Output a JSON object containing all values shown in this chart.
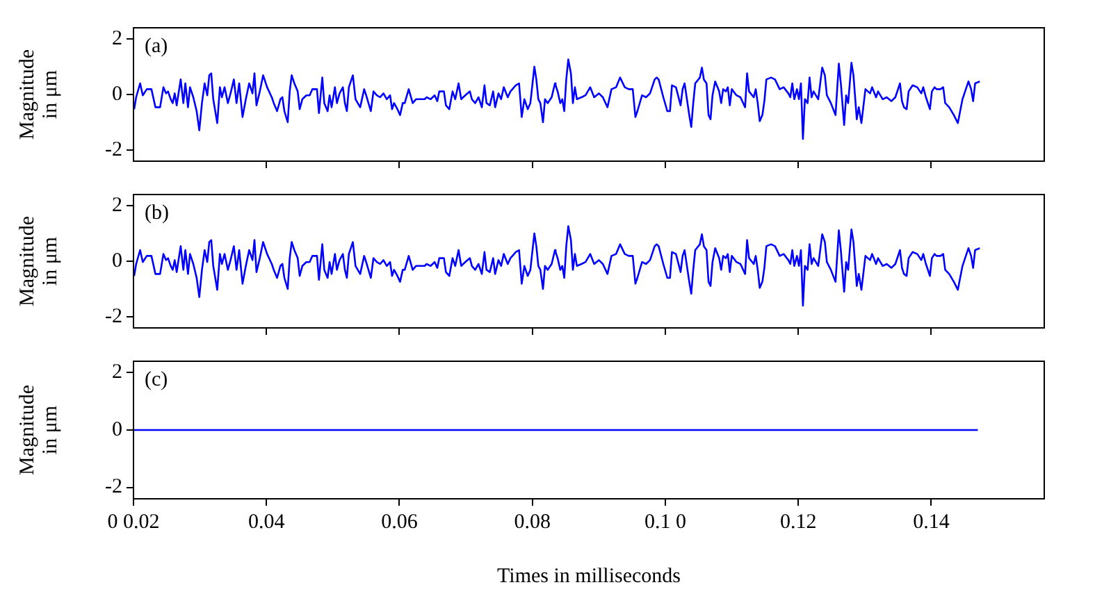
{
  "chart_data": [
    {
      "type": "line",
      "annotations": [
        "(a)"
      ],
      "ylabel": "Magnitude in μm",
      "xlim": [
        0.02,
        0.157
      ],
      "xticks": [
        0.04,
        0.06,
        0.08,
        0.1,
        0.12,
        0.14
      ],
      "ylim": [
        -2.4,
        2.4
      ],
      "yticks": [
        -2,
        0,
        2
      ],
      "tick_labels": "y",
      "series": [
        {
          "color": "#0000ff",
          "x": [
            0.0201,
            0.0204,
            0.021,
            0.0214,
            0.022,
            0.0227,
            0.0233,
            0.024,
            0.0245,
            0.0249,
            0.0252,
            0.0256,
            0.0259,
            0.0262,
            0.0265,
            0.0271,
            0.0275,
            0.0278,
            0.0282,
            0.0285,
            0.029,
            0.0295,
            0.0299,
            0.0303,
            0.0307,
            0.0311,
            0.0314,
            0.0317,
            0.032,
            0.0326,
            0.033,
            0.0333,
            0.0337,
            0.0342,
            0.0346,
            0.0351,
            0.0355,
            0.0359,
            0.0364,
            0.0369,
            0.0374,
            0.0379,
            0.0382,
            0.0385,
            0.039,
            0.0395,
            0.0401,
            0.0408,
            0.0411,
            0.0416,
            0.0421,
            0.0424,
            0.0427,
            0.0432,
            0.0435,
            0.0438,
            0.0442,
            0.0447,
            0.045,
            0.0454,
            0.046,
            0.0465,
            0.0469,
            0.0476,
            0.0479,
            0.0484,
            0.0487,
            0.0492,
            0.0495,
            0.0498,
            0.0503,
            0.0506,
            0.051,
            0.0515,
            0.0518,
            0.0521,
            0.0524,
            0.053,
            0.0534,
            0.0541,
            0.0547,
            0.055,
            0.0557,
            0.0561,
            0.0566,
            0.0571,
            0.0576,
            0.0581,
            0.0586,
            0.0589,
            0.0592,
            0.0597,
            0.0601,
            0.0605,
            0.0608,
            0.0614,
            0.062,
            0.0625,
            0.0631,
            0.0638,
            0.0641,
            0.0647,
            0.0653,
            0.0657,
            0.066,
            0.0667,
            0.067,
            0.0675,
            0.068,
            0.0684,
            0.0689,
            0.0693,
            0.0699,
            0.0706,
            0.0709,
            0.0714,
            0.0719,
            0.0724,
            0.0728,
            0.0731,
            0.0736,
            0.0741,
            0.0744,
            0.0749,
            0.0753,
            0.0757,
            0.0763,
            0.0767,
            0.077,
            0.0775,
            0.078,
            0.0784,
            0.0788,
            0.0793,
            0.0797,
            0.0803,
            0.0806,
            0.0809,
            0.0812,
            0.0816,
            0.0819,
            0.0823,
            0.0829,
            0.0834,
            0.0835,
            0.0838,
            0.0842,
            0.0845,
            0.0848,
            0.0851,
            0.0854,
            0.0858,
            0.0861,
            0.0864,
            0.0867,
            0.0874,
            0.088,
            0.0887,
            0.0893,
            0.09,
            0.0906,
            0.0913,
            0.0919,
            0.0926,
            0.0932,
            0.0939,
            0.0945,
            0.0951,
            0.0955,
            0.0958,
            0.0965,
            0.0971,
            0.0977,
            0.0984,
            0.0987,
            0.099,
            0.0997,
            0.1003,
            0.1007,
            0.101,
            0.1016,
            0.1023,
            0.1026,
            0.1029,
            0.1036,
            0.1039,
            0.1042,
            0.1045,
            0.1052,
            0.1055,
            0.1058,
            0.1062,
            0.1065,
            0.1068,
            0.1071,
            0.1075,
            0.1081,
            0.1084,
            0.1087,
            0.1091,
            0.1094,
            0.1097,
            0.11,
            0.1107,
            0.1113,
            0.112,
            0.1123,
            0.1126,
            0.1133,
            0.1136,
            0.1139,
            0.1142,
            0.1146,
            0.1149,
            0.1152,
            0.1159,
            0.1165,
            0.1172,
            0.1178,
            0.1185,
            0.1188,
            0.1191,
            0.1194,
            0.1198,
            0.1201,
            0.1204,
            0.1207,
            0.121,
            0.1214,
            0.1217,
            0.122,
            0.1223,
            0.123,
            0.1236,
            0.124,
            0.1243,
            0.1249,
            0.1256,
            0.1261,
            0.1264,
            0.1269,
            0.1272,
            0.1275,
            0.128,
            0.1283,
            0.1288,
            0.1291,
            0.1295,
            0.1301,
            0.1308,
            0.1311,
            0.1317,
            0.132,
            0.1327,
            0.1333,
            0.134,
            0.1346,
            0.1353,
            0.1356,
            0.1359,
            0.1363,
            0.1366,
            0.1372,
            0.1379,
            0.1385,
            0.1388,
            0.1392,
            0.1398,
            0.1401,
            0.1405,
            0.1408,
            0.1414,
            0.1418,
            0.1421,
            0.1427,
            0.1434,
            0.144,
            0.1447,
            0.1456,
            0.146,
            0.1463,
            0.1466,
            0.1473
          ],
          "values": [
            -0.53,
            -0.1,
            0.4,
            -0.03,
            0.19,
            0.19,
            -0.46,
            -0.46,
            0.26,
            0.04,
            0.11,
            -0.17,
            -0.31,
            0.04,
            -0.39,
            0.54,
            -0.31,
            0.4,
            -0.46,
            0.26,
            -0.1,
            -0.6,
            -1.29,
            -0.31,
            0.4,
            -0.03,
            0.69,
            0.76,
            -0.17,
            -1.03,
            0.26,
            -0.1,
            0.26,
            -0.31,
            0.04,
            0.54,
            -0.31,
            0.4,
            -0.81,
            -0.17,
            0.4,
            0.04,
            0.76,
            -0.39,
            0.11,
            0.69,
            0.26,
            -0.1,
            -0.31,
            -0.6,
            -0.17,
            -0.1,
            -0.6,
            -1,
            0.11,
            0.69,
            0.4,
            0.11,
            -0.53,
            -0.17,
            -0.03,
            -0.03,
            0.19,
            0.19,
            -0.67,
            0.61,
            -0.31,
            -0.6,
            -0.03,
            -0.46,
            0.26,
            -0.31,
            0.04,
            0.26,
            -0.31,
            -0.6,
            0.26,
            0.69,
            -0.17,
            -0.46,
            0.19,
            -0.03,
            -0.6,
            0.11,
            -0.03,
            -0.1,
            0.04,
            -0.17,
            -0.03,
            -0.53,
            -0.31,
            -0.53,
            -0.74,
            -0.31,
            -0.31,
            0.19,
            -0.31,
            -0.17,
            -0.17,
            -0.17,
            -0.1,
            -0.17,
            -0.03,
            -0.24,
            0.11,
            0.11,
            -0.39,
            -0.53,
            0.11,
            -0.17,
            0.4,
            -0.17,
            -0.03,
            0.11,
            -0.17,
            -0.31,
            -0.1,
            -0.46,
            0.33,
            -0.31,
            -0.39,
            0.11,
            -0.46,
            0.04,
            -0.17,
            0.26,
            -0.1,
            0.11,
            0.19,
            0.33,
            0.4,
            -0.81,
            -0.17,
            -0.53,
            -0.31,
            1,
            0.54,
            -0.17,
            -0.31,
            -1,
            -0.17,
            -0.31,
            -0.1,
            0.4,
            0.33,
            0.11,
            -0.31,
            -0.17,
            -0.6,
            0.54,
            1.26,
            0.76,
            -0.31,
            0.26,
            -0.17,
            -0.1,
            -0.03,
            0.26,
            -0.1,
            0.04,
            -0.1,
            -0.46,
            0.19,
            0.26,
            0.61,
            0.26,
            0.19,
            0.19,
            -0.81,
            -0.6,
            -0.03,
            -0.1,
            0.04,
            0.54,
            0.61,
            0.54,
            -0.1,
            -0.6,
            -0.6,
            0.33,
            0.26,
            -0.39,
            0.19,
            0.4,
            -0.74,
            -1.17,
            -0.31,
            0.4,
            0.61,
            0.97,
            0.54,
            0.4,
            -0.74,
            -0.89,
            -0.03,
            0.47,
            0.11,
            -0.31,
            0.19,
            0.11,
            0.26,
            -0.39,
            0.19,
            -0.03,
            -0.1,
            -0.46,
            0.76,
            0.11,
            -0.1,
            0.19,
            -0.31,
            -0.96,
            -0.74,
            -0.24,
            0.54,
            0.61,
            0.54,
            0.19,
            0.26,
            0.04,
            -0.1,
            0.4,
            -0.17,
            0.19,
            -0.17,
            0.4,
            -1.6,
            -0.17,
            -0.31,
            0.61,
            -0.1,
            0.11,
            -0.17,
            0.97,
            0.69,
            -0.03,
            -0.31,
            -0.74,
            1.11,
            0.4,
            -1.1,
            -0.03,
            -0.31,
            1.14,
            0.69,
            -0.89,
            -0.46,
            -1.03,
            0.19,
            0.04,
            0.26,
            -0.1,
            0.11,
            -0.17,
            -0.1,
            -0.24,
            -0.1,
            0.4,
            -0.24,
            -0.46,
            -0.53,
            0.11,
            0.33,
            0.26,
            0.04,
            0.26,
            -0.1,
            -0.53,
            0.11,
            0.26,
            0.19,
            0.19,
            0.26,
            -0.31,
            -0.46,
            -0.74,
            -1.03,
            -0.17,
            0.47,
            0.19,
            -0.24,
            0.4,
            0.47
          ]
        }
      ]
    },
    {
      "type": "line",
      "annotations": [
        "(b)"
      ],
      "ylabel": "Magnitude in μm",
      "xlim": [
        0.02,
        0.157
      ],
      "xticks": [
        0.04,
        0.06,
        0.08,
        0.1,
        0.12,
        0.14
      ],
      "ylim": [
        -2.4,
        2.4
      ],
      "yticks": [
        -2,
        0,
        2
      ],
      "tick_labels": "y",
      "series": [
        {
          "color": "#0000ff",
          "x": [
            0.0201,
            0.0204,
            0.021,
            0.0214,
            0.022,
            0.0227,
            0.0233,
            0.024,
            0.0245,
            0.0249,
            0.0252,
            0.0256,
            0.0259,
            0.0262,
            0.0265,
            0.0271,
            0.0275,
            0.0278,
            0.0282,
            0.0285,
            0.029,
            0.0295,
            0.0299,
            0.0303,
            0.0307,
            0.0311,
            0.0314,
            0.0317,
            0.032,
            0.0326,
            0.033,
            0.0333,
            0.0337,
            0.0342,
            0.0346,
            0.0351,
            0.0355,
            0.0359,
            0.0364,
            0.0369,
            0.0374,
            0.0379,
            0.0382,
            0.0385,
            0.039,
            0.0395,
            0.0401,
            0.0408,
            0.0411,
            0.0416,
            0.0421,
            0.0424,
            0.0427,
            0.0432,
            0.0435,
            0.0438,
            0.0442,
            0.0447,
            0.045,
            0.0454,
            0.046,
            0.0465,
            0.0469,
            0.0476,
            0.0479,
            0.0484,
            0.0487,
            0.0492,
            0.0495,
            0.0498,
            0.0503,
            0.0506,
            0.051,
            0.0515,
            0.0518,
            0.0521,
            0.0524,
            0.053,
            0.0534,
            0.0541,
            0.0547,
            0.055,
            0.0557,
            0.0561,
            0.0566,
            0.0571,
            0.0576,
            0.0581,
            0.0586,
            0.0589,
            0.0592,
            0.0597,
            0.0601,
            0.0605,
            0.0608,
            0.0614,
            0.062,
            0.0625,
            0.0631,
            0.0638,
            0.0641,
            0.0647,
            0.0653,
            0.0657,
            0.066,
            0.0667,
            0.067,
            0.0675,
            0.068,
            0.0684,
            0.0689,
            0.0693,
            0.0699,
            0.0706,
            0.0709,
            0.0714,
            0.0719,
            0.0724,
            0.0728,
            0.0731,
            0.0736,
            0.0741,
            0.0744,
            0.0749,
            0.0753,
            0.0757,
            0.0763,
            0.0767,
            0.077,
            0.0775,
            0.078,
            0.0784,
            0.0788,
            0.0793,
            0.0797,
            0.0803,
            0.0806,
            0.0809,
            0.0812,
            0.0816,
            0.0819,
            0.0823,
            0.0829,
            0.0834,
            0.0835,
            0.0838,
            0.0842,
            0.0845,
            0.0848,
            0.0851,
            0.0854,
            0.0858,
            0.0861,
            0.0864,
            0.0867,
            0.0874,
            0.088,
            0.0887,
            0.0893,
            0.09,
            0.0906,
            0.0913,
            0.0919,
            0.0926,
            0.0932,
            0.0939,
            0.0945,
            0.0951,
            0.0955,
            0.0958,
            0.0965,
            0.0971,
            0.0977,
            0.0984,
            0.0987,
            0.099,
            0.0997,
            0.1003,
            0.1007,
            0.101,
            0.1016,
            0.1023,
            0.1026,
            0.1029,
            0.1036,
            0.1039,
            0.1042,
            0.1045,
            0.1052,
            0.1055,
            0.1058,
            0.1062,
            0.1065,
            0.1068,
            0.1071,
            0.1075,
            0.1081,
            0.1084,
            0.1087,
            0.1091,
            0.1094,
            0.1097,
            0.11,
            0.1107,
            0.1113,
            0.112,
            0.1123,
            0.1126,
            0.1133,
            0.1136,
            0.1139,
            0.1142,
            0.1146,
            0.1149,
            0.1152,
            0.1159,
            0.1165,
            0.1172,
            0.1178,
            0.1185,
            0.1188,
            0.1191,
            0.1194,
            0.1198,
            0.1201,
            0.1204,
            0.1207,
            0.121,
            0.1214,
            0.1217,
            0.122,
            0.1223,
            0.123,
            0.1236,
            0.124,
            0.1243,
            0.1249,
            0.1256,
            0.1261,
            0.1264,
            0.1269,
            0.1272,
            0.1275,
            0.128,
            0.1283,
            0.1288,
            0.1291,
            0.1295,
            0.1301,
            0.1308,
            0.1311,
            0.1317,
            0.132,
            0.1327,
            0.1333,
            0.134,
            0.1346,
            0.1353,
            0.1356,
            0.1359,
            0.1363,
            0.1366,
            0.1372,
            0.1379,
            0.1385,
            0.1388,
            0.1392,
            0.1398,
            0.1401,
            0.1405,
            0.1408,
            0.1414,
            0.1418,
            0.1421,
            0.1427,
            0.1434,
            0.144,
            0.1447,
            0.1456,
            0.146,
            0.1463,
            0.1466,
            0.1473
          ],
          "values": [
            -0.53,
            -0.1,
            0.4,
            -0.03,
            0.19,
            0.19,
            -0.46,
            -0.46,
            0.26,
            0.04,
            0.11,
            -0.17,
            -0.31,
            0.04,
            -0.39,
            0.54,
            -0.31,
            0.4,
            -0.46,
            0.26,
            -0.1,
            -0.6,
            -1.29,
            -0.31,
            0.4,
            -0.03,
            0.69,
            0.76,
            -0.17,
            -1.03,
            0.26,
            -0.1,
            0.26,
            -0.31,
            0.04,
            0.54,
            -0.31,
            0.4,
            -0.81,
            -0.17,
            0.4,
            0.04,
            0.76,
            -0.39,
            0.11,
            0.69,
            0.26,
            -0.1,
            -0.31,
            -0.6,
            -0.17,
            -0.1,
            -0.6,
            -1,
            0.11,
            0.69,
            0.4,
            0.11,
            -0.53,
            -0.17,
            -0.03,
            -0.03,
            0.19,
            0.19,
            -0.67,
            0.61,
            -0.31,
            -0.6,
            -0.03,
            -0.46,
            0.26,
            -0.31,
            0.04,
            0.26,
            -0.31,
            -0.6,
            0.26,
            0.69,
            -0.17,
            -0.46,
            0.19,
            -0.03,
            -0.6,
            0.11,
            -0.03,
            -0.1,
            0.04,
            -0.17,
            -0.03,
            -0.53,
            -0.31,
            -0.53,
            -0.74,
            -0.31,
            -0.31,
            0.19,
            -0.31,
            -0.17,
            -0.17,
            -0.17,
            -0.1,
            -0.17,
            -0.03,
            -0.24,
            0.11,
            0.11,
            -0.39,
            -0.53,
            0.11,
            -0.17,
            0.4,
            -0.17,
            -0.03,
            0.11,
            -0.17,
            -0.31,
            -0.1,
            -0.46,
            0.33,
            -0.31,
            -0.39,
            0.11,
            -0.46,
            0.04,
            -0.17,
            0.26,
            -0.1,
            0.11,
            0.19,
            0.33,
            0.4,
            -0.81,
            -0.17,
            -0.53,
            -0.31,
            1,
            0.54,
            -0.17,
            -0.31,
            -1,
            -0.17,
            -0.31,
            -0.1,
            0.4,
            0.33,
            0.11,
            -0.31,
            -0.17,
            -0.6,
            0.54,
            1.26,
            0.76,
            -0.31,
            0.26,
            -0.17,
            -0.1,
            -0.03,
            0.26,
            -0.1,
            0.04,
            -0.1,
            -0.46,
            0.19,
            0.26,
            0.61,
            0.26,
            0.19,
            0.19,
            -0.81,
            -0.6,
            -0.03,
            -0.1,
            0.04,
            0.54,
            0.61,
            0.54,
            -0.1,
            -0.6,
            -0.6,
            0.33,
            0.26,
            -0.39,
            0.19,
            0.4,
            -0.74,
            -1.17,
            -0.31,
            0.4,
            0.61,
            0.97,
            0.54,
            0.4,
            -0.74,
            -0.89,
            -0.03,
            0.47,
            0.11,
            -0.31,
            0.19,
            0.11,
            0.26,
            -0.39,
            0.19,
            -0.03,
            -0.1,
            -0.46,
            0.76,
            0.11,
            -0.1,
            0.19,
            -0.31,
            -0.96,
            -0.74,
            -0.24,
            0.54,
            0.61,
            0.54,
            0.19,
            0.26,
            0.04,
            -0.1,
            0.4,
            -0.17,
            0.19,
            -0.17,
            0.4,
            -1.6,
            -0.17,
            -0.31,
            0.61,
            -0.1,
            0.11,
            -0.17,
            0.97,
            0.69,
            -0.03,
            -0.31,
            -0.74,
            1.11,
            0.4,
            -1.1,
            -0.03,
            -0.31,
            1.14,
            0.69,
            -0.89,
            -0.46,
            -1.03,
            0.19,
            0.04,
            0.26,
            -0.1,
            0.11,
            -0.17,
            -0.1,
            -0.24,
            -0.1,
            0.4,
            -0.24,
            -0.46,
            -0.53,
            0.11,
            0.33,
            0.26,
            0.04,
            0.26,
            -0.1,
            -0.53,
            0.11,
            0.26,
            0.19,
            0.19,
            0.26,
            -0.31,
            -0.46,
            -0.74,
            -1.03,
            -0.17,
            0.47,
            0.19,
            -0.24,
            0.4,
            0.47
          ]
        }
      ]
    },
    {
      "type": "line",
      "annotations": [
        "(c)"
      ],
      "ylabel": "Magnitude in μm",
      "xlabel": "Times in milliseconds",
      "xlim": [
        0.02,
        0.157
      ],
      "xticks": [
        {
          "value": 0.02,
          "label": "0 0.02"
        },
        0.04,
        0.06,
        0.08,
        {
          "value": 0.1,
          "label": "0.1 0"
        },
        0.12,
        0.14
      ],
      "ylim": [
        -2.4,
        2.4
      ],
      "yticks": [
        -2,
        0,
        2
      ],
      "series": [
        {
          "color": "#0000ff",
          "x": [
            0.02,
            0.147
          ],
          "values": [
            0,
            0
          ]
        }
      ]
    }
  ]
}
